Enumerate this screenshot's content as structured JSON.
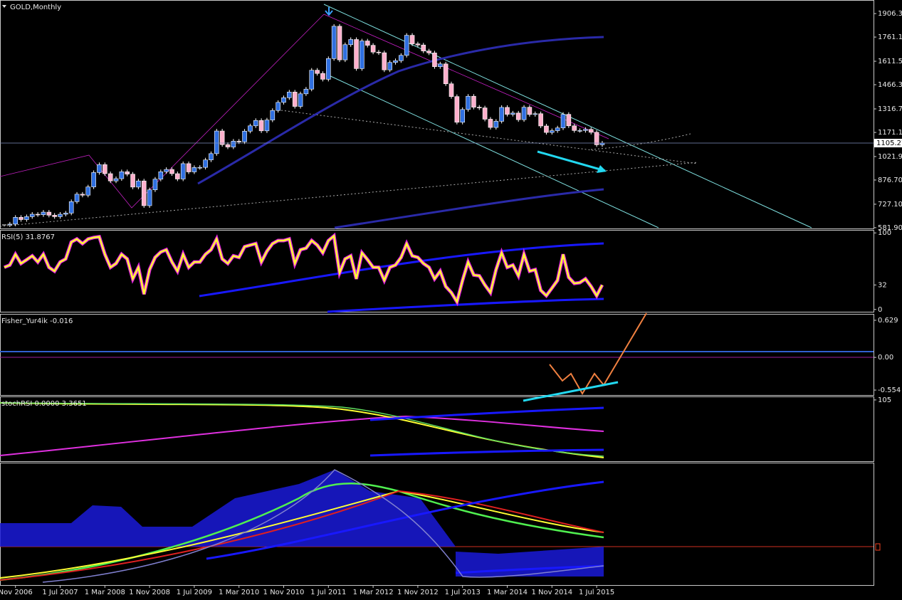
{
  "chart_data": [
    {
      "type": "candlestick",
      "title": "GOLD,Monthly",
      "up_color": "#2f6fe0",
      "down_color": "#ffb0cc",
      "categories": [
        null,
        null,
        "Nov 2006",
        null,
        null,
        null,
        null,
        null,
        null,
        null,
        "1 Jul 2007",
        null,
        null,
        null,
        null,
        null,
        null,
        null,
        "1 Mar 2008",
        null,
        null,
        null,
        null,
        null,
        null,
        null,
        "1 Nov 2008",
        null,
        null,
        null,
        null,
        null,
        null,
        null,
        "1 Jul 2009",
        null,
        null,
        null,
        null,
        null,
        null,
        null,
        "1 Mar 2010",
        null,
        null,
        null,
        null,
        null,
        null,
        null,
        "1 Nov 2010",
        null,
        null,
        null,
        null,
        null,
        null,
        null,
        "1 Jul 2011",
        null,
        null,
        null,
        null,
        null,
        null,
        null,
        "1 Mar 2012",
        null,
        null,
        null,
        null,
        null,
        null,
        null,
        "1 Nov 2012",
        null,
        null,
        null,
        null,
        null,
        null,
        null,
        "1 Jul 2013",
        null,
        null,
        null,
        null,
        null,
        null,
        null,
        "1 Mar 2014",
        null,
        null,
        null,
        null,
        null,
        null,
        null,
        "1 Nov 2014",
        null,
        null,
        null,
        null,
        null,
        null,
        null,
        "1 Jul 2015",
        null
      ],
      "values": [
        599,
        604,
        646,
        632,
        650,
        665,
        662,
        678,
        659,
        650,
        665,
        672,
        743,
        789,
        783,
        834,
        923,
        972,
        916,
        871,
        885,
        928,
        913,
        833,
        871,
        718,
        816,
        882,
        928,
        942,
        916,
        883,
        978,
        927,
        954,
        955,
        1001,
        1040,
        1180,
        1096,
        1081,
        1117,
        1113,
        1179,
        1212,
        1245,
        1181,
        1248,
        1307,
        1357,
        1386,
        1421,
        1332,
        1410,
        1439,
        1556,
        1536,
        1500,
        1628,
        1828,
        1620,
        1714,
        1746,
        1566,
        1737,
        1710,
        1668,
        1664,
        1558,
        1604,
        1615,
        1648,
        1772,
        1719,
        1712,
        1675,
        1663,
        1578,
        1595,
        1472,
        1393,
        1234,
        1313,
        1395,
        1327,
        1323,
        1253,
        1202,
        1240,
        1326,
        1283,
        1291,
        1250,
        1327,
        1282,
        1287,
        1211,
        1171,
        1182,
        1199,
        1283,
        1212,
        1183,
        1183,
        1190,
        1172,
        1095,
        1105
      ],
      "last_price": 1105.27,
      "ylim": [
        577,
        1986
      ],
      "yticks": [
        {
          "value": 581.9,
          "label": "581.90"
        },
        {
          "value": 727.1,
          "label": "727.10"
        },
        {
          "value": 876.7,
          "label": "876.70"
        },
        {
          "value": 1021.9,
          "label": "1021.90"
        },
        {
          "value": 1171.1,
          "label": "1171.10"
        },
        {
          "value": 1316.7,
          "label": "1316.70"
        },
        {
          "value": 1466.3,
          "label": "1466.30"
        },
        {
          "value": 1611.5,
          "label": "1611.50"
        },
        {
          "value": 1761.1,
          "label": "1761.10"
        },
        {
          "value": 1906.3,
          "label": "1906.30"
        }
      ]
    },
    {
      "type": "line",
      "title": "RSI(5) 31.8767",
      "color": "#ffff33",
      "values": [
        55,
        58,
        72,
        60,
        65,
        70,
        62,
        72,
        55,
        50,
        62,
        66,
        88,
        92,
        86,
        92,
        94,
        95,
        72,
        55,
        60,
        72,
        66,
        40,
        55,
        20,
        52,
        68,
        75,
        78,
        62,
        50,
        72,
        55,
        62,
        62,
        72,
        78,
        92,
        66,
        60,
        70,
        68,
        82,
        84,
        86,
        62,
        76,
        86,
        90,
        90,
        92,
        60,
        78,
        80,
        90,
        84,
        74,
        90,
        96,
        48,
        66,
        70,
        40,
        74,
        65,
        55,
        55,
        38,
        55,
        58,
        68,
        86,
        70,
        68,
        60,
        55,
        40,
        50,
        30,
        22,
        10,
        38,
        62,
        45,
        44,
        32,
        22,
        52,
        74,
        55,
        58,
        44,
        72,
        50,
        52,
        25,
        18,
        28,
        38,
        72,
        42,
        34,
        35,
        40,
        30,
        18,
        32
      ],
      "ylim": [
        -3,
        103
      ],
      "yticks": [
        100,
        32,
        0
      ]
    },
    {
      "type": "indicator",
      "title": "Fisher_Yur4ik -0.016",
      "ylim": [
        -0.638,
        0.725
      ],
      "yticks": [
        0.629,
        {
          "value": 0,
          "label": "0.00"
        },
        -0.554
      ]
    },
    {
      "type": "indicator",
      "title": "stochRSI 0.0000 3.3651",
      "ylim": [
        -5,
        110
      ],
      "yticks": [
        105
      ]
    }
  ]
}
